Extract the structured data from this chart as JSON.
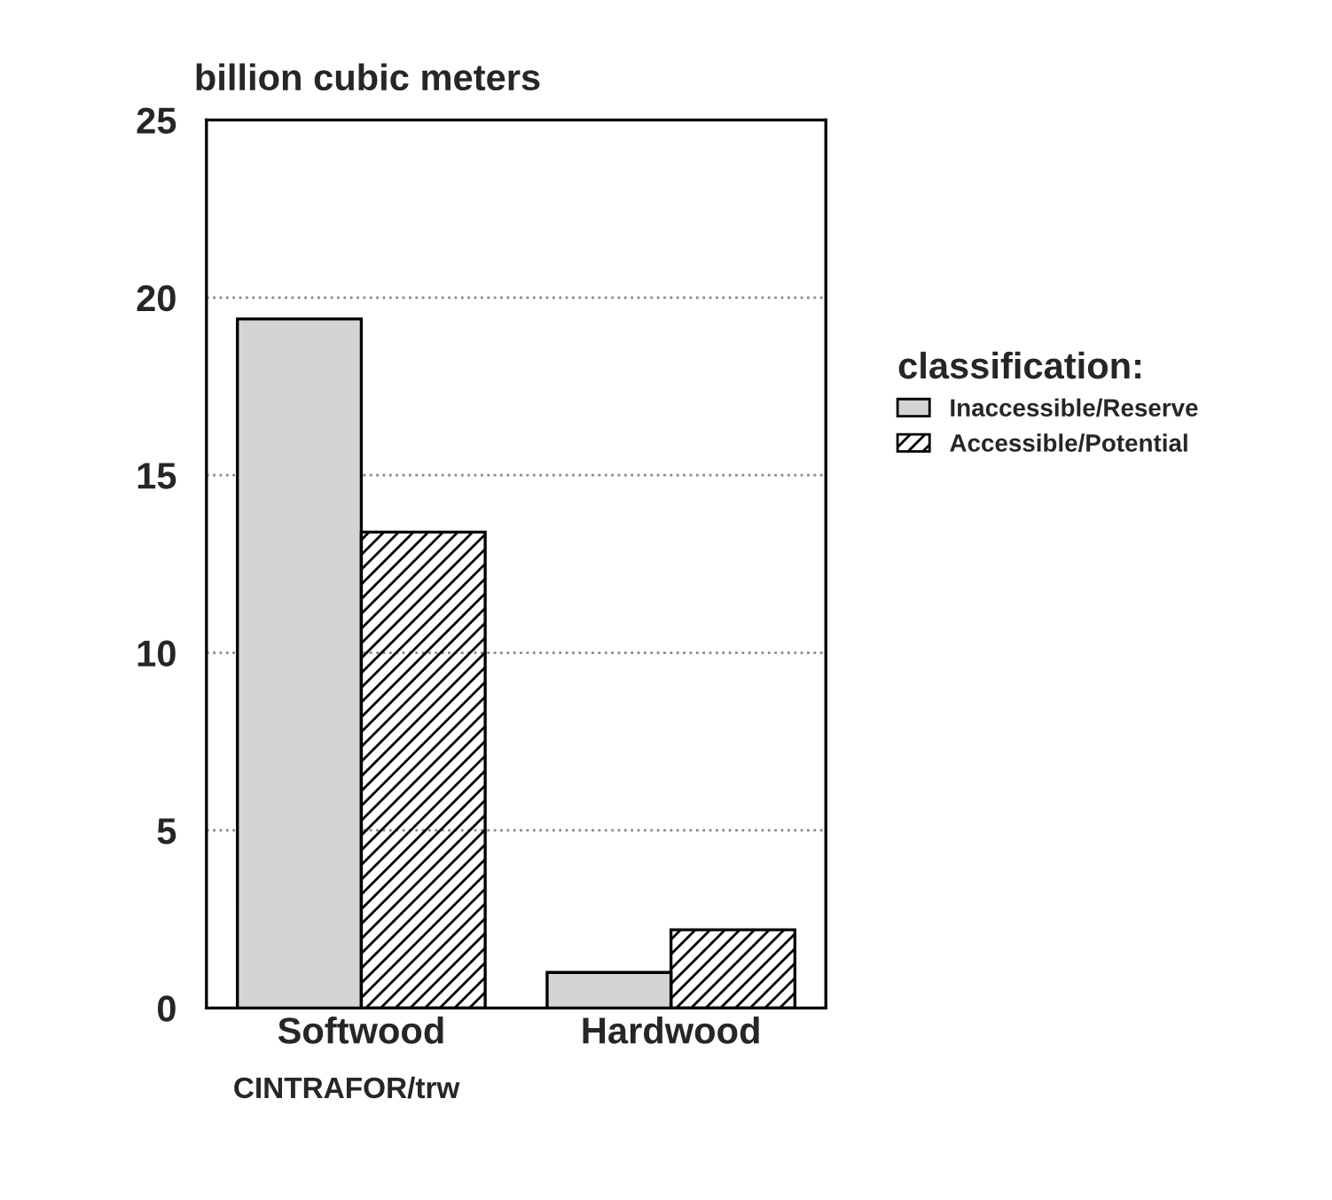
{
  "chart_data": {
    "type": "bar",
    "ylabel": "billion cubic meters",
    "legend_title": "classification:",
    "categories": [
      "Softwood",
      "Hardwood"
    ],
    "series": [
      {
        "name": "Inaccessible/Reserve",
        "color": "#d4d4d4",
        "values": [
          19.4,
          1.0
        ]
      },
      {
        "name": "Accessible/Potential",
        "color": "#000000",
        "values": [
          13.4,
          2.2
        ]
      }
    ],
    "ylim": [
      0,
      25
    ],
    "yticks": [
      0,
      5,
      10,
      15,
      20,
      25
    ],
    "grid": "y",
    "legend": "right",
    "annotations": [
      "CINTRAFOR/trw"
    ]
  }
}
